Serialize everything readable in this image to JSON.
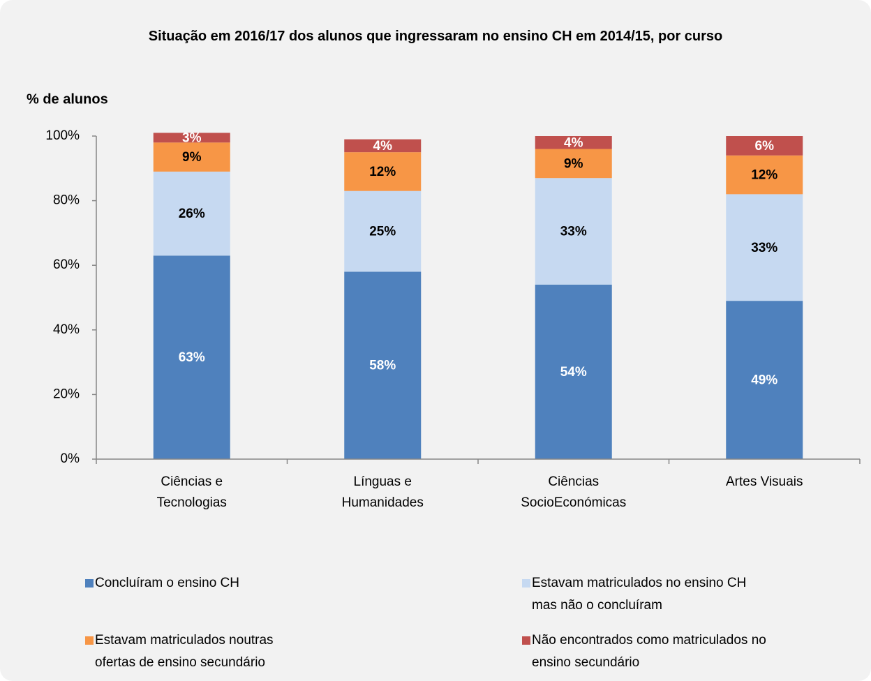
{
  "chart_data": {
    "type": "stacked_bar",
    "title": "Situação em 2016/17 dos alunos que ingressaram no ensino CH em 2014/15, por curso",
    "y_label": "% de alunos",
    "categories": [
      "Ciências e Tecnologias",
      "Línguas e Humanidades",
      "Ciências SocioEconómicas",
      "Artes Visuais"
    ],
    "series": [
      {
        "name": "Concluíram o ensino CH",
        "color": "#4f81bd",
        "values": [
          63,
          58,
          54,
          49
        ],
        "value_labels": [
          "63%",
          "58%",
          "54%",
          "49%"
        ]
      },
      {
        "name": "Estavam matriculados no ensino CH mas não o concluíram",
        "color": "#c6d9f1",
        "values": [
          26,
          25,
          33,
          33
        ],
        "value_labels": [
          "26%",
          "25%",
          "33%",
          "33%"
        ]
      },
      {
        "name": "Estavam matriculados noutras ofertas de ensino secundário",
        "color": "#f79646",
        "values": [
          9,
          12,
          9,
          12
        ],
        "value_labels": [
          "9%",
          "12%",
          "9%",
          "12%"
        ]
      },
      {
        "name": "Não encontrados como matriculados no ensino secundário",
        "color": "#c0504d",
        "values": [
          3,
          4,
          4,
          6
        ],
        "value_labels": [
          "3%",
          "4%",
          "4%",
          "6%"
        ]
      }
    ],
    "ylim": [
      0,
      100
    ],
    "yticks": [
      {
        "value": 0,
        "label": "0%"
      },
      {
        "value": 20,
        "label": "20%"
      },
      {
        "value": 40,
        "label": "40%"
      },
      {
        "value": 60,
        "label": "60%"
      },
      {
        "value": 80,
        "label": "80%"
      },
      {
        "value": 100,
        "label": "100%"
      }
    ]
  }
}
